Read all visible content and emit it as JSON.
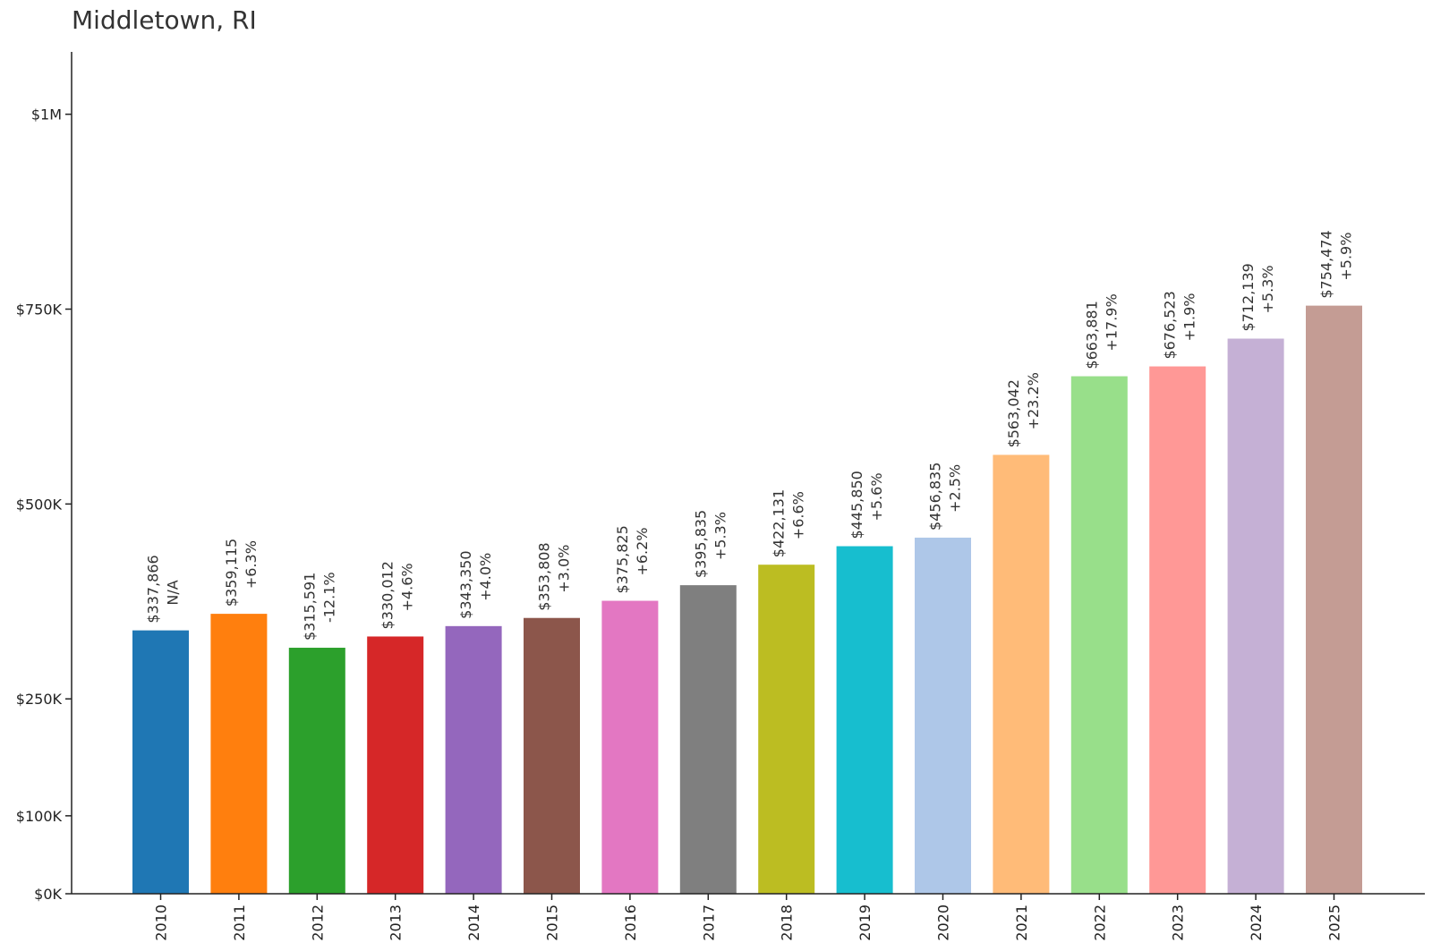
{
  "chart_data": {
    "type": "bar",
    "title": "Middletown, RI",
    "xlabel": "",
    "ylabel": "",
    "categories": [
      "2010",
      "2011",
      "2012",
      "2013",
      "2014",
      "2015",
      "2016",
      "2017",
      "2018",
      "2019",
      "2020",
      "2021",
      "2022",
      "2023",
      "2024",
      "2025"
    ],
    "values": [
      337866,
      359115,
      315591,
      330012,
      343350,
      353808,
      375825,
      395835,
      422131,
      445850,
      456835,
      563042,
      663881,
      676523,
      712139,
      754474
    ],
    "value_labels": [
      "$337,866",
      "$359,115",
      "$315,591",
      "$330,012",
      "$343,350",
      "$353,808",
      "$375,825",
      "$395,835",
      "$422,131",
      "$445,850",
      "$456,835",
      "$563,042",
      "$663,881",
      "$676,523",
      "$712,139",
      "$754,474"
    ],
    "change_labels": [
      "N/A",
      "+6.3%",
      "-12.1%",
      "+4.6%",
      "+4.0%",
      "+3.0%",
      "+6.2%",
      "+5.3%",
      "+6.6%",
      "+5.6%",
      "+2.5%",
      "+23.2%",
      "+17.9%",
      "+1.9%",
      "+5.3%",
      "+5.9%"
    ],
    "colors": [
      "#1f77b4",
      "#ff7f0e",
      "#2ca02c",
      "#d62728",
      "#9467bd",
      "#8c564b",
      "#e377c2",
      "#7f7f7f",
      "#bcbd22",
      "#17becf",
      "#aec7e8",
      "#ffbb78",
      "#98df8a",
      "#ff9896",
      "#c5b0d5",
      "#c49c94"
    ],
    "yticks": [
      0,
      100000,
      250000,
      500000,
      750000,
      1000000
    ],
    "ytick_labels": [
      "$0K",
      "$100K",
      "$250K",
      "$500K",
      "$750K",
      "$1M"
    ],
    "ylim": [
      0,
      1080000
    ],
    "grid": false,
    "legend": "none"
  }
}
